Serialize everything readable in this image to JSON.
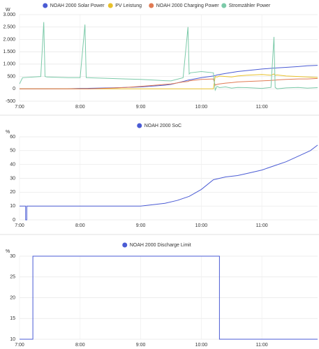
{
  "chart_data": [
    {
      "type": "line",
      "y_label": "W",
      "grid": true,
      "x": [
        7.0,
        7.05,
        7.35,
        7.4,
        7.42,
        7.45,
        7.8,
        8.0,
        8.08,
        8.1,
        8.12,
        8.5,
        8.75,
        9.0,
        9.25,
        9.4,
        9.5,
        9.7,
        9.78,
        9.8,
        9.82,
        10.0,
        10.2,
        10.23,
        10.26,
        10.3,
        10.4,
        10.5,
        10.6,
        10.75,
        11.0,
        11.15,
        11.2,
        11.22,
        11.25,
        11.4,
        11.6,
        11.75,
        11.92
      ],
      "xlim": [
        7,
        11.92
      ],
      "xticks": [
        {
          "value": 7,
          "label": "7:00"
        },
        {
          "value": 8,
          "label": "8:00"
        },
        {
          "value": 9,
          "label": "9:00"
        },
        {
          "value": 10,
          "label": "10:00"
        },
        {
          "value": 11,
          "label": "11:00"
        }
      ],
      "ylim": [
        -500,
        3000
      ],
      "yticks": [
        {
          "value": -500,
          "label": "-500"
        },
        0,
        500,
        {
          "value": 1000,
          "label": "1.000"
        },
        {
          "value": 1500,
          "label": "1.500"
        },
        {
          "value": 2000,
          "label": "2.000"
        },
        {
          "value": 2500,
          "label": "2.500"
        },
        {
          "value": 3000,
          "label": "3.000"
        }
      ],
      "series": [
        {
          "name": "NOAH 2000 Solar Power",
          "color": "#4a5bd4",
          "values": [
            0,
            0,
            0,
            0,
            0,
            0,
            5,
            20,
            20,
            20,
            20,
            40,
            60,
            80,
            120,
            150,
            180,
            300,
            350,
            360,
            370,
            450,
            520,
            540,
            560,
            580,
            620,
            660,
            700,
            740,
            800,
            830,
            840,
            840,
            850,
            870,
            900,
            930,
            950
          ]
        },
        {
          "name": "PV Leistung",
          "color": "#e8c02a",
          "values": [
            0,
            0,
            0,
            0,
            0,
            0,
            0,
            0,
            0,
            0,
            0,
            0,
            0,
            0,
            0,
            0,
            0,
            0,
            0,
            0,
            0,
            0,
            0,
            500,
            480,
            520,
            500,
            480,
            520,
            550,
            580,
            550,
            600,
            550,
            560,
            520,
            500,
            480,
            460
          ]
        },
        {
          "name": "NOAH 2000 Charging Power",
          "color": "#e07a53",
          "values": [
            0,
            0,
            0,
            0,
            0,
            0,
            0,
            0,
            0,
            0,
            0,
            30,
            60,
            100,
            150,
            180,
            200,
            280,
            300,
            320,
            330,
            380,
            400,
            150,
            180,
            200,
            230,
            250,
            280,
            300,
            320,
            340,
            350,
            350,
            360,
            380,
            400,
            400,
            420
          ]
        },
        {
          "name": "Stromzähler Power",
          "color": "#7ccaa9",
          "values": [
            200,
            450,
            500,
            2700,
            500,
            480,
            450,
            450,
            2600,
            450,
            450,
            420,
            400,
            380,
            350,
            330,
            320,
            450,
            2500,
            600,
            650,
            700,
            650,
            -50,
            100,
            50,
            80,
            30,
            60,
            50,
            20,
            60,
            2100,
            60,
            0,
            40,
            60,
            30,
            50
          ]
        }
      ]
    },
    {
      "type": "line",
      "y_label": "%",
      "grid": true,
      "x": [
        7.0,
        7.1,
        7.1,
        7.12,
        7.12,
        9.0,
        9.2,
        9.4,
        9.6,
        9.8,
        10.0,
        10.2,
        10.4,
        10.6,
        10.8,
        11.0,
        11.2,
        11.4,
        11.6,
        11.8,
        11.92
      ],
      "xlim": [
        7,
        11.92
      ],
      "xticks": [
        {
          "value": 7,
          "label": "7:00"
        },
        {
          "value": 8,
          "label": "8:00"
        },
        {
          "value": 9,
          "label": "9:00"
        },
        {
          "value": 10,
          "label": "10:00"
        },
        {
          "value": 11,
          "label": "11:00"
        }
      ],
      "ylim": [
        0,
        60
      ],
      "yticks": [
        0,
        10,
        20,
        30,
        40,
        50,
        60
      ],
      "series": [
        {
          "name": "NOAH 2000 SoC",
          "color": "#4a5bd4",
          "values": [
            10,
            10,
            0,
            0,
            10,
            10,
            11,
            12,
            14,
            17,
            22,
            29,
            31,
            32,
            34,
            36,
            39,
            42,
            46,
            50,
            54
          ]
        }
      ]
    },
    {
      "type": "line",
      "y_label": "%",
      "grid": true,
      "x": [
        7.0,
        7.22,
        7.22,
        10.3,
        10.3,
        11.92
      ],
      "xlim": [
        7,
        11.92
      ],
      "xticks": [
        {
          "value": 7,
          "label": "7:00"
        },
        {
          "value": 8,
          "label": "8:00"
        },
        {
          "value": 9,
          "label": "9:00"
        },
        {
          "value": 10,
          "label": "10:00"
        },
        {
          "value": 11,
          "label": "11:00"
        }
      ],
      "ylim": [
        10,
        30
      ],
      "yticks": [
        10,
        15,
        20,
        25,
        30
      ],
      "series": [
        {
          "name": "NOAH 2000 Discharge Limit",
          "color": "#4a5bd4",
          "values": [
            10,
            10,
            30,
            30,
            10,
            10
          ]
        }
      ]
    }
  ]
}
